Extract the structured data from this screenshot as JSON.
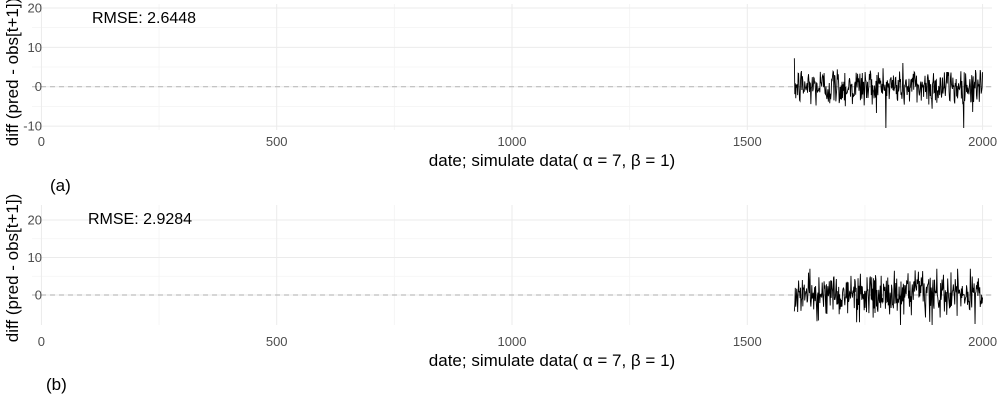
{
  "chart_data": [
    {
      "type": "line",
      "panel_label": "(a)",
      "annotation": "RMSE: 2.6448",
      "xlabel": "date; simulate data( α = 7,  β = 1)",
      "ylabel": "diff (pred - obs[t+1])",
      "xlim": [
        -20,
        2020
      ],
      "ylim": [
        -11,
        21
      ],
      "x_ticks": [
        0,
        500,
        1000,
        1500,
        2000
      ],
      "y_ticks": [
        -10,
        0,
        10,
        20
      ],
      "reference_line": 0,
      "grid": true,
      "series": [
        {
          "x_start": 1600,
          "x_end": 2000,
          "points": 400,
          "approx_min": -10.5,
          "approx_max": 7.5,
          "approx_sd": 2.6
        }
      ]
    },
    {
      "type": "line",
      "panel_label": "(b)",
      "annotation": "RMSE: 2.9284",
      "xlabel": "date; simulate data( α = 7,  β = 1)",
      "ylabel": "diff (pred - obs[t+1])",
      "xlim": [
        -20,
        2020
      ],
      "ylim": [
        -8,
        24
      ],
      "x_ticks": [
        0,
        500,
        1000,
        1500,
        2000
      ],
      "y_ticks": [
        0,
        10,
        20
      ],
      "reference_line": 0,
      "grid": true,
      "series": [
        {
          "x_start": 1600,
          "x_end": 2000,
          "points": 400,
          "approx_min": -8,
          "approx_max": 7,
          "approx_sd": 2.9
        }
      ]
    }
  ]
}
